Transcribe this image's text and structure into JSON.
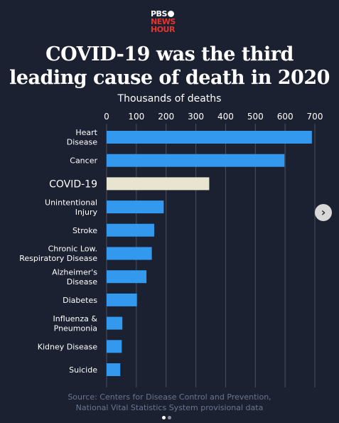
{
  "logo": {
    "line1": "PBS",
    "line2": "NEWS",
    "line3": "HOUR"
  },
  "header": {
    "title_line1": "COVID-19 was the third",
    "title_line2": "leading cause of death in 2020"
  },
  "chart_data": {
    "type": "bar",
    "orientation": "horizontal",
    "xlabel": "Thousands of deaths",
    "xlim": [
      0,
      700
    ],
    "xticks": [
      0,
      100,
      200,
      300,
      400,
      500,
      600,
      700
    ],
    "grid": true,
    "categories": [
      "Heart\nDisease",
      "Cancer",
      "COVID-19",
      "Unintentional\nInjury",
      "Stroke",
      "Chronic Low.\nRespiratory Disease",
      "Alzheimer's\nDisease",
      "Diabetes",
      "Influenza &\nPneumonia",
      "Kidney Disease",
      "Suicide"
    ],
    "values": [
      690,
      598,
      345,
      192,
      160,
      152,
      134,
      102,
      53,
      51,
      46
    ],
    "highlight": "COVID-19",
    "colors": {
      "bar": "#3399ee",
      "highlight": "#e8e4cf",
      "grid": "#4a5060"
    }
  },
  "source": {
    "line1": "Source: Centers for Disease Control and Prevention,",
    "line2": "National Vital Statistics System provisional data"
  },
  "carousel": {
    "next_icon": "›"
  }
}
